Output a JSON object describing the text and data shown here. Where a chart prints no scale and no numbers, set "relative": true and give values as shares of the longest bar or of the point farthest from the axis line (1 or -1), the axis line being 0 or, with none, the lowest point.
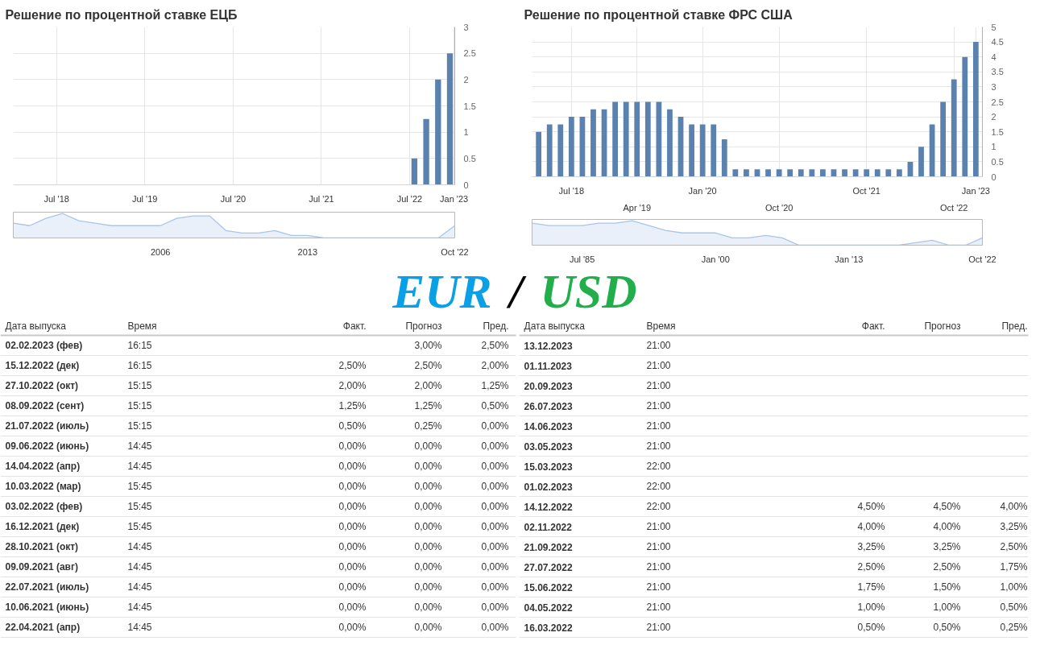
{
  "chart_data": [
    {
      "type": "bar",
      "title": "Решение по процентной ставке ЕЦБ",
      "x": [
        "2022-07-21",
        "2022-09-08",
        "2022-10-27",
        "2022-12-15"
      ],
      "values": [
        0.5,
        1.25,
        2,
        2.5
      ],
      "color": "#5b82ae",
      "xlim": [
        "2018-01-03",
        "2023-01-04"
      ],
      "xticks": [
        {
          "value": "2018-07-01",
          "label": "Jul '18"
        },
        {
          "value": "2019-07-01",
          "label": "Jul '19"
        },
        {
          "value": "2020-07-01",
          "label": "Jul '20"
        },
        {
          "value": "2021-07-01",
          "label": "Jul '21"
        },
        {
          "value": "2022-07-01",
          "label": "Jul '22"
        },
        {
          "value": "2023-01-01",
          "label": "Jan '23"
        }
      ],
      "ylim": [
        0,
        3
      ],
      "yticks": [
        0,
        0.5,
        1,
        1.5,
        2,
        2.5,
        3
      ],
      "grid": true
    },
    {
      "type": "area",
      "relative": true,
      "categories": [
        null,
        null,
        null,
        null,
        null,
        null,
        null,
        null,
        null,
        "2006",
        null,
        null,
        null,
        null,
        null,
        null,
        null,
        null,
        "2013",
        null,
        null,
        null,
        null,
        null,
        null,
        null,
        null,
        "Oct '22"
      ],
      "values": [
        0.6,
        0.5,
        0.8,
        1.0,
        0.7,
        0.6,
        0.5,
        0.5,
        0.5,
        0.5,
        0.8,
        0.9,
        0.9,
        0.3,
        0.2,
        0.2,
        0.3,
        0.1,
        0.1,
        0,
        0,
        0,
        0,
        0,
        0,
        0,
        0,
        0.5
      ],
      "color": "#a9c5e6"
    },
    {
      "type": "bar",
      "title": "Решение по процентной ставке ФРС США",
      "categories": [
        null,
        null,
        null,
        "Jul '18",
        null,
        null,
        null,
        null,
        null,
        "Apr '19",
        null,
        null,
        null,
        null,
        null,
        "Jan '20",
        null,
        null,
        null,
        null,
        null,
        null,
        "Oct '20",
        null,
        null,
        null,
        null,
        null,
        null,
        null,
        "Oct '21",
        null,
        null,
        null,
        null,
        null,
        null,
        null,
        "Oct '22",
        null,
        "Jan '23"
      ],
      "values": [
        1.5,
        1.75,
        1.75,
        2,
        2,
        2.25,
        2.25,
        2.5,
        2.5,
        2.5,
        2.5,
        2.5,
        2.25,
        2,
        1.75,
        1.75,
        1.75,
        1.25,
        0.25,
        0.25,
        0.25,
        0.25,
        0.25,
        0.25,
        0.25,
        0.25,
        0.25,
        0.25,
        0.25,
        0.25,
        0.25,
        0.25,
        0.25,
        0.25,
        0.5,
        1,
        1.75,
        2.5,
        3.25,
        4,
        4.5
      ],
      "color": "#5b82ae",
      "ylim": [
        0,
        5
      ],
      "yticks": [
        0,
        0.5,
        1,
        1.5,
        2,
        2.5,
        3,
        3.5,
        4,
        4.5,
        5
      ],
      "grid": true
    },
    {
      "type": "area",
      "relative": true,
      "categories": [
        null,
        null,
        null,
        "Jul '85",
        null,
        null,
        null,
        null,
        null,
        null,
        null,
        "Jan '00",
        null,
        null,
        null,
        null,
        null,
        null,
        null,
        "Jan '13",
        null,
        null,
        null,
        null,
        null,
        null,
        null,
        "Oct '22"
      ],
      "values": [
        0.9,
        0.8,
        0.8,
        0.8,
        0.9,
        0.9,
        1.0,
        0.8,
        0.6,
        0.5,
        0.5,
        0.5,
        0.3,
        0.3,
        0.4,
        0.3,
        0,
        0,
        0,
        0,
        0,
        0,
        0,
        0.1,
        0.2,
        0,
        0,
        0.3
      ],
      "color": "#a9c5e6"
    },
    {
      "type": "other",
      "annotations": [
        "EUR",
        "/",
        "USD"
      ],
      "colors": [
        "#0aa0e6",
        "#000000",
        "#21ae4b"
      ]
    },
    {
      "type": "other",
      "categories": [
        "Дата выпуска",
        "Время",
        "Факт.",
        "Прогноз",
        "Пред."
      ],
      "cell_labels": [
        [
          "02.02.2023 (фев)",
          "16:15",
          null,
          "3,00%",
          "2,50%"
        ],
        [
          "15.12.2022 (дек)",
          "16:15",
          "2,50%",
          "2,50%",
          "2,00%"
        ],
        [
          "27.10.2022 (окт)",
          "15:15",
          "2,00%",
          "2,00%",
          "1,25%"
        ],
        [
          "08.09.2022 (сент)",
          "15:15",
          "1,25%",
          "1,25%",
          "0,50%"
        ],
        [
          "21.07.2022 (июль)",
          "15:15",
          "0,50%",
          "0,25%",
          "0,00%"
        ],
        [
          "09.06.2022 (июнь)",
          "14:45",
          "0,00%",
          "0,00%",
          "0,00%"
        ],
        [
          "14.04.2022 (апр)",
          "14:45",
          "0,00%",
          "0,00%",
          "0,00%"
        ],
        [
          "10.03.2022 (мар)",
          "15:45",
          "0,00%",
          "0,00%",
          "0,00%"
        ],
        [
          "03.02.2022 (фев)",
          "15:45",
          "0,00%",
          "0,00%",
          "0,00%"
        ],
        [
          "16.12.2021 (дек)",
          "15:45",
          "0,00%",
          "0,00%",
          "0,00%"
        ],
        [
          "28.10.2021 (окт)",
          "14:45",
          "0,00%",
          "0,00%",
          "0,00%"
        ],
        [
          "09.09.2021 (авг)",
          "14:45",
          "0,00%",
          "0,00%",
          "0,00%"
        ],
        [
          "22.07.2021 (июль)",
          "14:45",
          "0,00%",
          "0,00%",
          "0,00%"
        ],
        [
          "10.06.2021 (июнь)",
          "14:45",
          "0,00%",
          "0,00%",
          "0,00%"
        ],
        [
          "22.04.2021 (апр)",
          "14:45",
          "0,00%",
          "0,00%",
          "0,00%"
        ]
      ]
    },
    {
      "type": "other",
      "categories": [
        "Дата выпуска",
        "Время",
        "Факт.",
        "Прогноз",
        "Пред."
      ],
      "cell_labels": [
        [
          "13.12.2023",
          "21:00",
          null,
          null,
          null
        ],
        [
          "01.11.2023",
          "21:00",
          null,
          null,
          null
        ],
        [
          "20.09.2023",
          "21:00",
          null,
          null,
          null
        ],
        [
          "26.07.2023",
          "21:00",
          null,
          null,
          null
        ],
        [
          "14.06.2023",
          "21:00",
          null,
          null,
          null
        ],
        [
          "03.05.2023",
          "21:00",
          null,
          null,
          null
        ],
        [
          "15.03.2023",
          "22:00",
          null,
          null,
          null
        ],
        [
          "01.02.2023",
          "22:00",
          null,
          null,
          null
        ],
        [
          "14.12.2022",
          "22:00",
          "4,50%",
          "4,50%",
          "4,00%"
        ],
        [
          "02.11.2022",
          "21:00",
          "4,00%",
          "4,00%",
          "3,25%"
        ],
        [
          "21.09.2022",
          "21:00",
          "3,25%",
          "3,25%",
          "2,50%"
        ],
        [
          "27.07.2022",
          "21:00",
          "2,50%",
          "2,50%",
          "1,75%"
        ],
        [
          "15.06.2022",
          "21:00",
          "1,75%",
          "1,50%",
          "1,00%"
        ],
        [
          "04.05.2022",
          "21:00",
          "1,00%",
          "1,00%",
          "0,50%"
        ],
        [
          "16.03.2022",
          "21:00",
          "0,50%",
          "0,50%",
          "0,25%"
        ]
      ]
    }
  ]
}
